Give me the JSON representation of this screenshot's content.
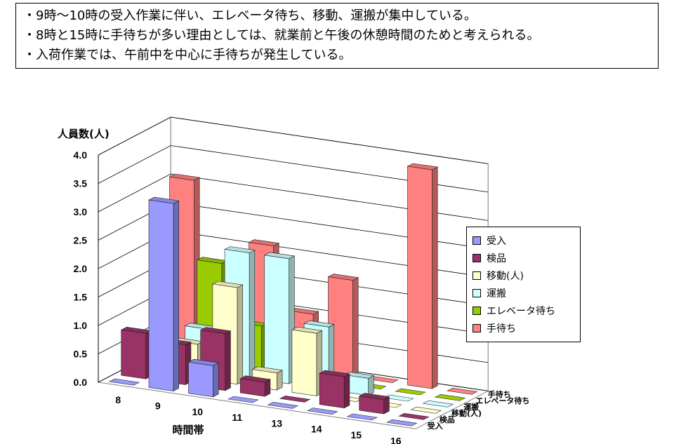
{
  "notes": [
    "・9時～10時の受入作業に伴い、エレベータ待ち、移動、運搬が集中している。",
    "・8時と15時に手待ちが多い理由としては、就業前と午後の休憩時間のためと考えられる。",
    "・入荷作業では、午前中を中心に手待ちが発生している。"
  ],
  "chart_data": {
    "type": "bar",
    "subtype": "3d-column",
    "ylabel": "人員数(人)",
    "xlabel": "時間帯",
    "ylim": [
      0,
      4.0
    ],
    "yticks": [
      "0.0",
      "0.5",
      "1.0",
      "1.5",
      "2.0",
      "2.5",
      "3.0",
      "3.5",
      "4.0"
    ],
    "grid": true,
    "legend_position": "right",
    "categories": [
      "8",
      "9",
      "10",
      "11",
      "13",
      "14",
      "15",
      "16"
    ],
    "series": [
      {
        "name": "受入",
        "color": "#9999ff",
        "values": [
          0,
          3.3,
          0.55,
          0,
          0,
          0,
          0,
          0
        ]
      },
      {
        "name": "検品",
        "color": "#993366",
        "values": [
          0.8,
          0.7,
          1.0,
          0.25,
          0,
          0.55,
          0.25,
          0
        ]
      },
      {
        "name": "移動(人)",
        "color": "#ffffcc",
        "values": [
          0,
          0.6,
          1.7,
          0.3,
          1.1,
          0,
          0,
          0
        ]
      },
      {
        "name": "運搬",
        "color": "#ccffff",
        "values": [
          0,
          0.75,
          2.2,
          2.2,
          1.1,
          0.3,
          0,
          0
        ]
      },
      {
        "name": "エレベータ待ち",
        "color": "#99cc00",
        "values": [
          0,
          1.8,
          0.8,
          0,
          0,
          0,
          0,
          0
        ]
      },
      {
        "name": "手待ち",
        "color": "#ff8080",
        "values": [
          3.05,
          1.55,
          2.1,
          1.0,
          1.7,
          0,
          3.85,
          0
        ]
      }
    ]
  }
}
